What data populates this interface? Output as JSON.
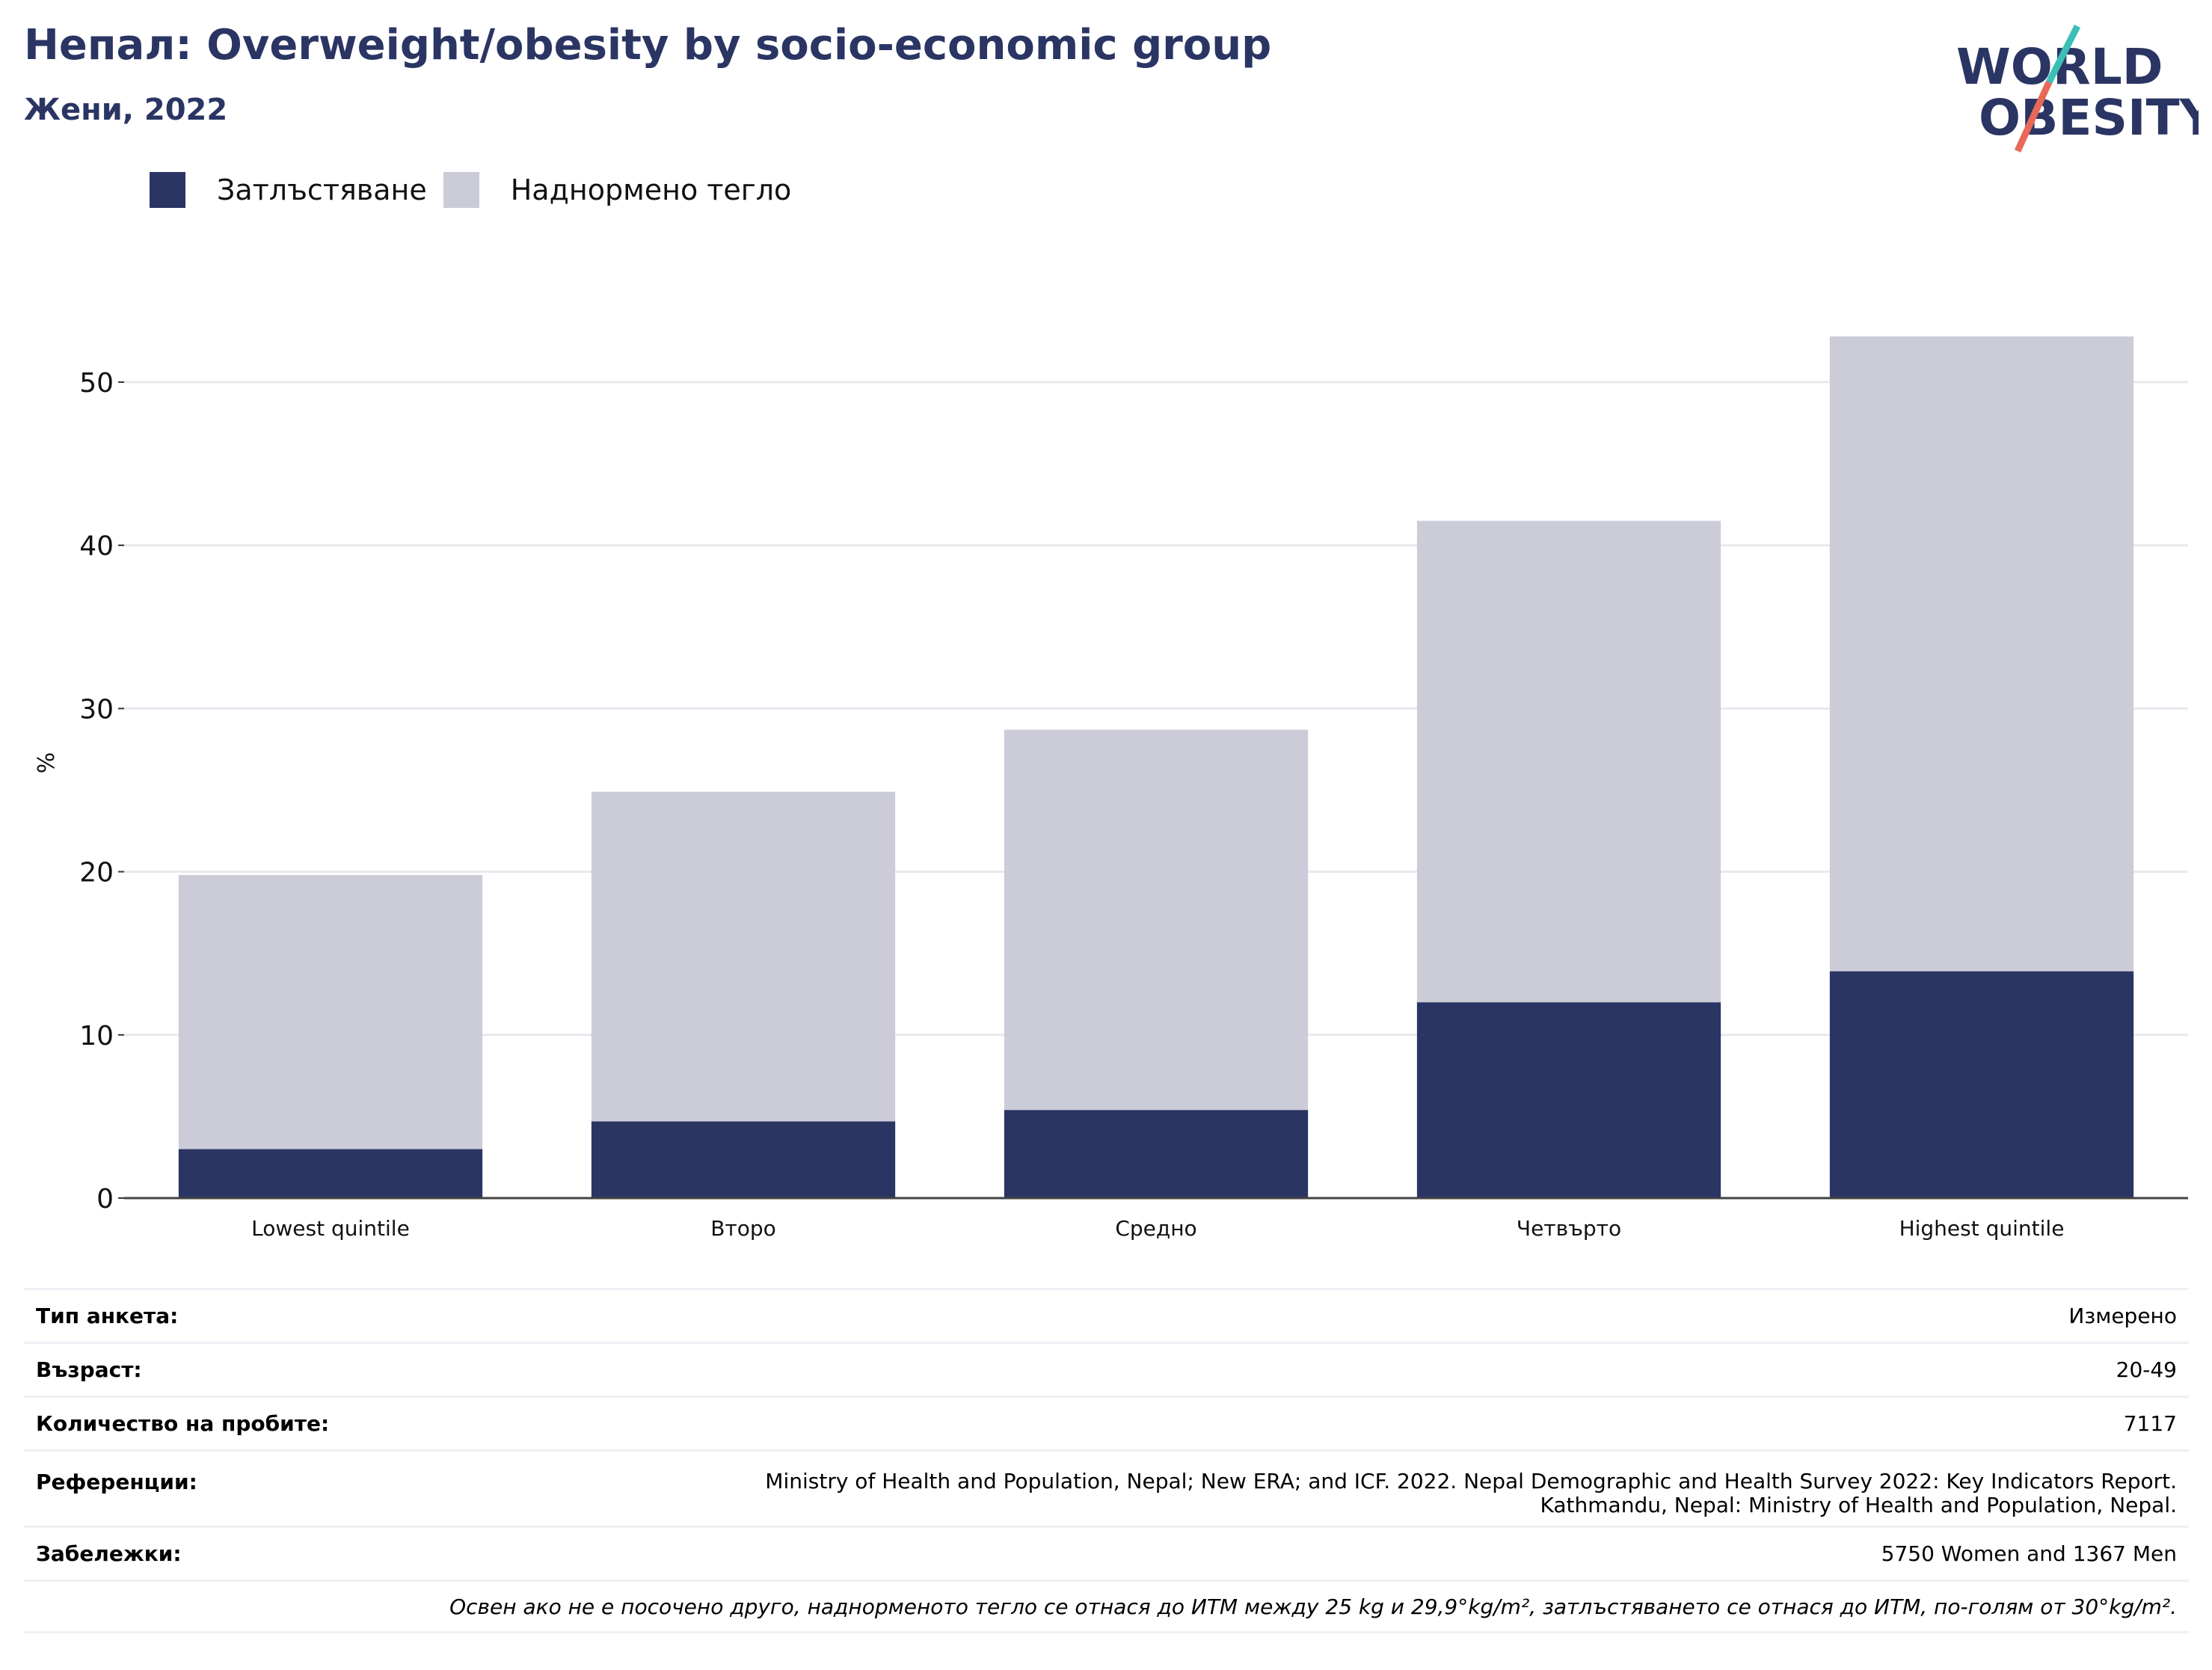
{
  "header": {
    "title": "Непал: Overweight/obesity by socio-economic group",
    "subtitle": "Жени, 2022"
  },
  "logo": {
    "line1": "WORLD",
    "line2": "OBESITY",
    "accent_teal": "#3bbfb6",
    "accent_coral": "#e8685a"
  },
  "legend": {
    "items": [
      {
        "label": "Затлъстяване",
        "color": "#2a3563"
      },
      {
        "label": "Наднормено тегло",
        "color": "#cbccd8"
      }
    ]
  },
  "chart_data": {
    "type": "bar",
    "stacked": true,
    "categories": [
      "Lowest quintile",
      "Второ",
      "Средно",
      "Четвърто",
      "Highest quintile"
    ],
    "series": [
      {
        "name": "Затлъстяване",
        "color": "#2a3563",
        "values": [
          3.0,
          4.7,
          5.4,
          12.0,
          13.9
        ]
      },
      {
        "name": "Наднормено тегло",
        "color": "#cbccd8",
        "values": [
          16.8,
          20.2,
          23.3,
          29.5,
          38.9
        ]
      }
    ],
    "ylabel": "%",
    "ylim": [
      0,
      56
    ],
    "yticks": [
      0,
      10,
      20,
      30,
      40,
      50
    ],
    "grid": true
  },
  "info": {
    "survey_type": {
      "label": "Тип анкета:",
      "value": "Измерено"
    },
    "age": {
      "label": "Възраст:",
      "value": "20-49"
    },
    "sample_size": {
      "label": "Количество на пробите:",
      "value": "7117"
    },
    "references": {
      "label": "Референции:",
      "line1": "Ministry of Health and Population, Nepal; New ERA; and ICF. 2022. Nepal Demographic and Health Survey 2022: Key Indicators Report.",
      "line2": "Kathmandu, Nepal: Ministry of Health and Population, Nepal."
    },
    "notes": {
      "label": "Забележки:",
      "value": "5750 Women and 1367 Men"
    },
    "footnote": "Освен ако не е посочено друго, наднорменото тегло се отнася до ИТМ между 25 kg и 29,9°kg/m², затлъстяването се отнася до ИТМ, по-голям от 30°kg/m²."
  }
}
